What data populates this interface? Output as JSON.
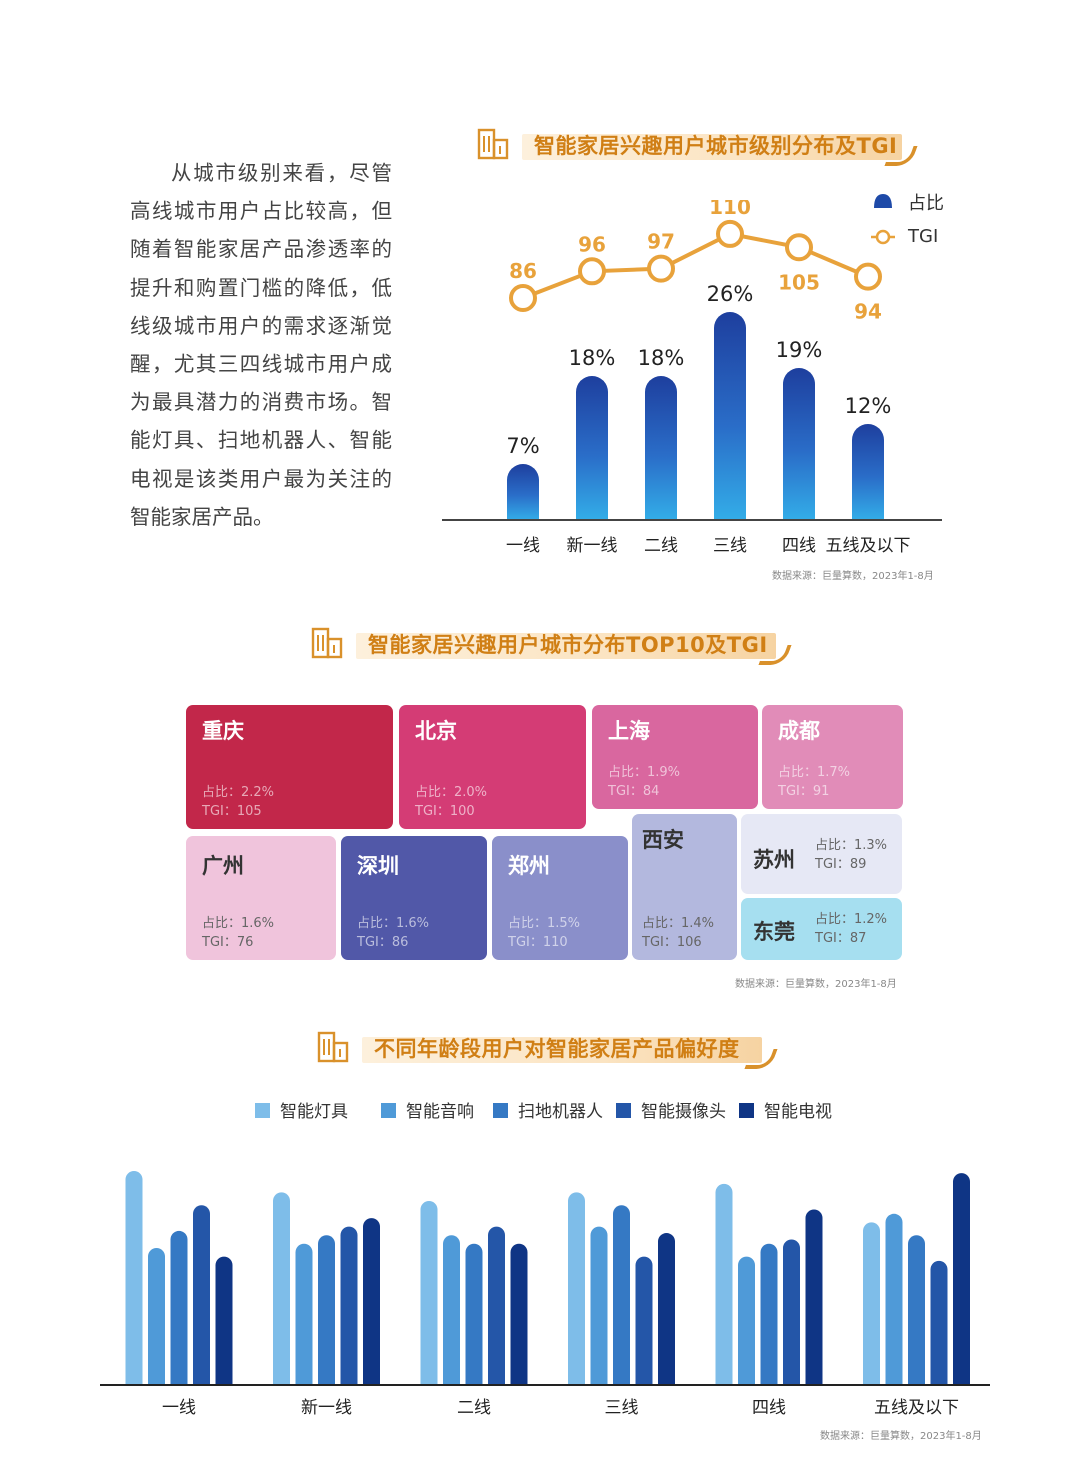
{
  "intro_text": "从城市级别来看，尽管高线城市用户占比较高，但随着智能家居产品渗透率的提升和购置门槛的降低，低线级城市用户的需求逐渐觉醒，尤其三四线城市用户成为最具潜力的消费市场。智能灯具、扫地机器人、智能电视是该类用户最为关注的智能家居产品。",
  "colors": {
    "orange": "#e8a23b",
    "bar_top": "#1e4aa8",
    "bar_bottom": "#2fa6e6",
    "series": [
      "#7ebde9",
      "#4f9ad8",
      "#3579c4",
      "#2456a8",
      "#0f3585"
    ]
  },
  "chart_data": [
    {
      "type": "bar",
      "title": "智能家居兴趣用户城市级别分布及TGI",
      "categories": [
        "一线",
        "新一线",
        "二线",
        "三线",
        "四线",
        "五线及以下"
      ],
      "series": [
        {
          "name": "占比",
          "values": [
            7,
            18,
            18,
            26,
            19,
            12
          ],
          "labels": [
            "7%",
            "18%",
            "18%",
            "26%",
            "19%",
            "12%"
          ]
        },
        {
          "name": "TGI",
          "type": "line",
          "values": [
            86,
            96,
            97,
            110,
            105,
            94
          ],
          "labels": [
            "86",
            "96",
            "97",
            "110",
            "105",
            "94"
          ]
        }
      ],
      "legend": [
        "占比",
        "TGI"
      ],
      "source": "数据来源：巨量算数，2023年1-8月"
    },
    {
      "type": "table",
      "title": "智能家居兴趣用户城市分布TOP10及TGI",
      "rows": [
        {
          "city": "重庆",
          "share": "占比：2.2%",
          "tgi": "TGI：105",
          "share_value": 2.2,
          "tgi_value": 105,
          "color": "#c2274a"
        },
        {
          "city": "北京",
          "share": "占比：2.0%",
          "tgi": "TGI：100",
          "share_value": 2.0,
          "tgi_value": 100,
          "color": "#d43c75"
        },
        {
          "city": "上海",
          "share": "占比：1.9%",
          "tgi": "TGI：84",
          "share_value": 1.9,
          "tgi_value": 84,
          "color": "#d9679f"
        },
        {
          "city": "成都",
          "share": "占比：1.7%",
          "tgi": "TGI：91",
          "share_value": 1.7,
          "tgi_value": 91,
          "color": "#e18cb8"
        },
        {
          "city": "广州",
          "share": "占比：1.6%",
          "tgi": "TGI：76",
          "share_value": 1.6,
          "tgi_value": 76,
          "color": "#f0c4dc"
        },
        {
          "city": "深圳",
          "share": "占比：1.6%",
          "tgi": "TGI：86",
          "share_value": 1.6,
          "tgi_value": 86,
          "color": "#5158a8"
        },
        {
          "city": "郑州",
          "share": "占比：1.5%",
          "tgi": "TGI：110",
          "share_value": 1.5,
          "tgi_value": 110,
          "color": "#8a8fca"
        },
        {
          "city": "西安",
          "share": "占比：1.4%",
          "tgi": "TGI：106",
          "share_value": 1.4,
          "tgi_value": 106,
          "color": "#b3b8de"
        },
        {
          "city": "苏州",
          "share": "占比：1.3%",
          "tgi": "TGI：89",
          "share_value": 1.3,
          "tgi_value": 89,
          "color": "#e6e8f5"
        },
        {
          "city": "东莞",
          "share": "占比：1.2%",
          "tgi": "TGI：87",
          "share_value": 1.2,
          "tgi_value": 87,
          "color": "#a6dff0"
        }
      ],
      "source": "数据来源：巨量算数，2023年1-8月"
    },
    {
      "type": "bar",
      "title": "不同年龄段用户对智能家居产品偏好度",
      "categories": [
        "一线",
        "新一线",
        "二线",
        "三线",
        "四线",
        "五线及以下"
      ],
      "series": [
        {
          "name": "智能灯具",
          "values": [
            100,
            90,
            86,
            90,
            94,
            76
          ]
        },
        {
          "name": "智能音响",
          "values": [
            64,
            66,
            70,
            74,
            60,
            80
          ]
        },
        {
          "name": "扫地机器人",
          "values": [
            72,
            70,
            66,
            84,
            66,
            70
          ]
        },
        {
          "name": "智能摄像头",
          "values": [
            84,
            74,
            74,
            60,
            68,
            58
          ]
        },
        {
          "name": "智能电视",
          "values": [
            60,
            78,
            66,
            71,
            82,
            99
          ]
        }
      ],
      "ylim": [
        0,
        105
      ],
      "source": "数据来源：巨量算数，2023年1-8月"
    }
  ]
}
